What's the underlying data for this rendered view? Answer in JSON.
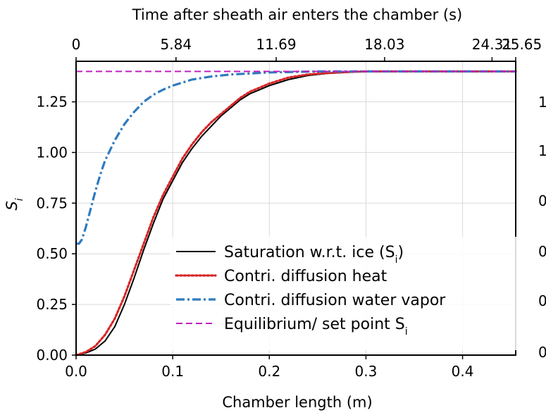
{
  "chart_data": {
    "type": "line",
    "xlabel": "Chamber length (m)",
    "ylabel": "S",
    "ylabel_sub": "i",
    "top_xlabel": "Time after sheath air enters the chamber (s)",
    "xlim": [
      0.0,
      0.455
    ],
    "ylim": [
      0.0,
      1.45
    ],
    "x_ticks": [
      0.0,
      0.1,
      0.2,
      0.3,
      0.4
    ],
    "x_tick_labels": [
      "0.0",
      "0.1",
      "0.2",
      "0.3",
      "0.4"
    ],
    "y_ticks": [
      0.0,
      0.25,
      0.5,
      0.75,
      1.0,
      1.25
    ],
    "y_tick_labels": [
      "0.00",
      "0.25",
      "0.50",
      "0.75",
      "1.00",
      "1.25"
    ],
    "top_ticks": [
      0.0,
      0.1034,
      0.2071,
      0.3193,
      0.4305,
      0.455
    ],
    "top_tick_labels": [
      "0",
      "5.84",
      "11.69",
      "18.03",
      "24.31",
      "25.65"
    ],
    "grid": true,
    "legend_position": "lower-right",
    "right_axis_tick_labels": [
      "1",
      "1",
      "0",
      "0",
      "0",
      "0"
    ],
    "series": [
      {
        "name": "Saturation w.r.t. ice (S",
        "name_sub": "i",
        "name_suffix": ")",
        "color": "#000000",
        "style": "solid",
        "x": [
          0.0,
          0.01,
          0.02,
          0.03,
          0.04,
          0.05,
          0.06,
          0.07,
          0.08,
          0.09,
          0.1,
          0.11,
          0.12,
          0.13,
          0.14,
          0.15,
          0.16,
          0.17,
          0.18,
          0.19,
          0.2,
          0.22,
          0.24,
          0.26,
          0.28,
          0.3,
          0.32,
          0.35,
          0.4,
          0.455
        ],
        "y": [
          0.0,
          0.01,
          0.03,
          0.07,
          0.14,
          0.25,
          0.38,
          0.52,
          0.65,
          0.77,
          0.86,
          0.95,
          1.02,
          1.08,
          1.13,
          1.18,
          1.22,
          1.26,
          1.29,
          1.31,
          1.33,
          1.36,
          1.38,
          1.39,
          1.395,
          1.4,
          1.4,
          1.4,
          1.4,
          1.4
        ]
      },
      {
        "name": "Contri. diffusion heat",
        "color": "#d62728",
        "style": "dotted",
        "x": [
          0.0,
          0.01,
          0.02,
          0.03,
          0.04,
          0.05,
          0.06,
          0.07,
          0.08,
          0.09,
          0.1,
          0.11,
          0.12,
          0.13,
          0.14,
          0.15,
          0.16,
          0.17,
          0.18,
          0.19,
          0.2,
          0.22,
          0.24,
          0.26,
          0.28,
          0.3,
          0.32,
          0.35,
          0.4,
          0.455
        ],
        "y": [
          0.0,
          0.015,
          0.045,
          0.1,
          0.18,
          0.29,
          0.42,
          0.55,
          0.68,
          0.79,
          0.88,
          0.97,
          1.04,
          1.1,
          1.15,
          1.19,
          1.23,
          1.27,
          1.3,
          1.32,
          1.34,
          1.37,
          1.385,
          1.392,
          1.397,
          1.4,
          1.4,
          1.4,
          1.4,
          1.4
        ]
      },
      {
        "name": "Contri. diffusion water vapor",
        "color": "#2e7bbf",
        "style": "dashdot",
        "x": [
          0.0,
          0.003,
          0.006,
          0.01,
          0.015,
          0.02,
          0.025,
          0.03,
          0.04,
          0.05,
          0.06,
          0.07,
          0.08,
          0.09,
          0.1,
          0.11,
          0.12,
          0.14,
          0.16,
          0.18,
          0.2,
          0.25,
          0.3,
          0.35,
          0.4,
          0.455
        ],
        "y": [
          0.55,
          0.55,
          0.57,
          0.63,
          0.72,
          0.81,
          0.89,
          0.96,
          1.06,
          1.14,
          1.2,
          1.25,
          1.285,
          1.31,
          1.33,
          1.345,
          1.36,
          1.375,
          1.385,
          1.39,
          1.395,
          1.4,
          1.4,
          1.4,
          1.4,
          1.4
        ]
      },
      {
        "name": "Equilibrium/ set point S",
        "name_sub": "i",
        "color": "#c020c0",
        "style": "dashed",
        "x": [
          0.0,
          0.455
        ],
        "y": [
          1.4,
          1.4
        ]
      }
    ]
  }
}
